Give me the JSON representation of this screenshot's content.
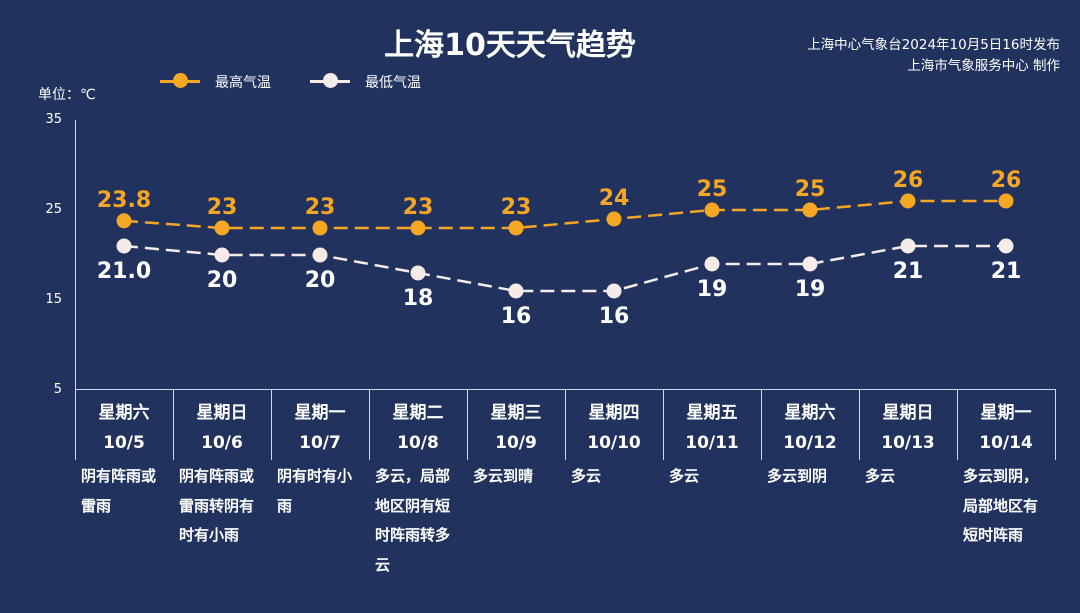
{
  "header": {
    "title": "上海10天天气趋势",
    "source_line1": "上海中心气象台2024年10月5日16时发布",
    "source_line2": "上海市气象服务中心 制作"
  },
  "legend": {
    "high": "最高气温",
    "low": "最低气温"
  },
  "unit_label": "单位：℃",
  "colors": {
    "background": "#22325f",
    "high": "#f5a623",
    "low": "#f5ece9",
    "axis": "#cfd6e8"
  },
  "chart_data": {
    "type": "line",
    "title": "上海10天天气趋势",
    "ylabel": "单位：℃",
    "ylim": [
      5,
      35
    ],
    "yticks": [
      "35",
      "25",
      "15",
      "5"
    ],
    "grid": false,
    "legend_position": "top-left",
    "categories": [
      "10/5",
      "10/6",
      "10/7",
      "10/8",
      "10/9",
      "10/10",
      "10/11",
      "10/12",
      "10/13",
      "10/14"
    ],
    "weekdays": [
      "星期六",
      "星期日",
      "星期一",
      "星期二",
      "星期三",
      "星期四",
      "星期五",
      "星期六",
      "星期日",
      "星期一"
    ],
    "series": [
      {
        "name": "最高气温",
        "values": [
          23.8,
          23,
          23,
          23,
          23,
          24,
          25,
          25,
          26,
          26
        ],
        "labels": [
          "23.8",
          "23",
          "23",
          "23",
          "23",
          "24",
          "25",
          "25",
          "26",
          "26"
        ]
      },
      {
        "name": "最低气温",
        "values": [
          21.0,
          20,
          20,
          18,
          16,
          16,
          19,
          19,
          21,
          21
        ],
        "labels": [
          "21.0",
          "20",
          "20",
          "18",
          "16",
          "16",
          "19",
          "19",
          "21",
          "21"
        ]
      }
    ],
    "weather": [
      [
        "阴有阵雨或",
        "雷雨"
      ],
      [
        "阴有阵雨或",
        "雷雨转阴有",
        "时有小雨"
      ],
      [
        "阴有时有小",
        "雨"
      ],
      [
        "多云，局部",
        "地区阴有短",
        "时阵雨转多",
        "云"
      ],
      [
        "多云到晴"
      ],
      [
        "多云"
      ],
      [
        "多云"
      ],
      [
        "多云到阴"
      ],
      [
        "多云"
      ],
      [
        "多云到阴，",
        "局部地区有",
        "短时阵雨"
      ]
    ]
  }
}
